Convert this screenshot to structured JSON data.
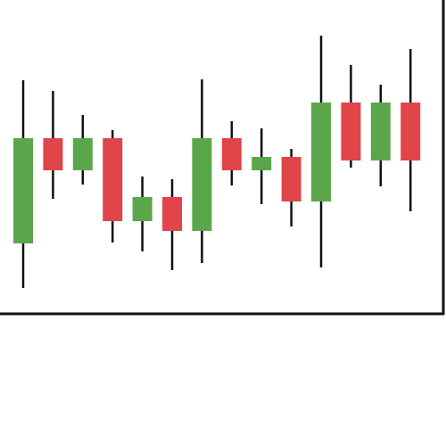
{
  "chart_data": {
    "type": "candlestick",
    "open": [
      79,
      197,
      161,
      197,
      104,
      131,
      93,
      197,
      161,
      176,
      126,
      237,
      172,
      237
    ],
    "high": [
      262,
      250,
      223,
      206,
      154,
      151,
      263,
      216,
      208,
      185,
      312,
      279,
      257,
      297
    ],
    "low": [
      29,
      129,
      145,
      80,
      70,
      49,
      57,
      144,
      123,
      98,
      52,
      164,
      143,
      115
    ],
    "close": [
      197,
      161,
      197,
      104,
      131,
      93,
      197,
      161,
      176,
      126,
      237,
      172,
      237,
      172
    ],
    "up_color": "#5ba64b",
    "down_color": "#e04549",
    "ylim": [
      0,
      352
    ]
  }
}
